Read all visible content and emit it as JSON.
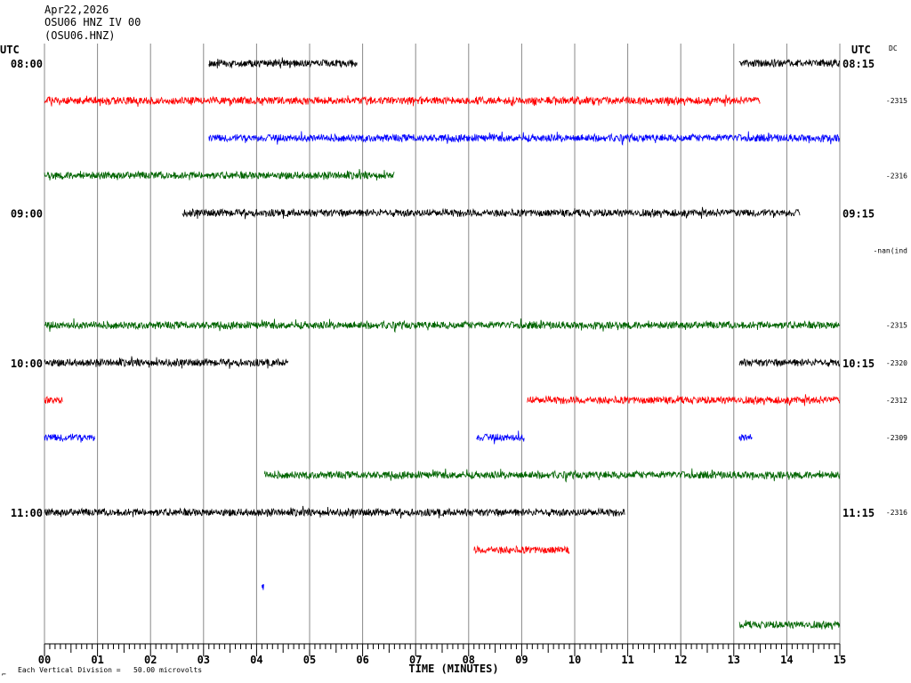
{
  "header": {
    "date": "Apr22,2026",
    "station_line": "OSU06 HNZ IV 00",
    "channel_line": "(OSU06.HNZ)"
  },
  "utc_left_label": "UTC",
  "utc_right_label": "UTC",
  "dc_label": "DC",
  "footer": {
    "scale_text": "Each Vertical Division =   50.00 microvolts",
    "corner_mark": "⌐"
  },
  "colors": {
    "black": "#000000",
    "red": "#ff0000",
    "blue": "#0000ff",
    "green": "#006400",
    "grid": "#888888"
  },
  "chart_data": {
    "type": "line",
    "title": "",
    "xlabel": "TIME (MINUTES)",
    "ylabel": "",
    "xlim": [
      0,
      15
    ],
    "x_tick_labels": [
      "00",
      "01",
      "02",
      "03",
      "04",
      "05",
      "06",
      "07",
      "08",
      "09",
      "10",
      "11",
      "12",
      "13",
      "14",
      "15"
    ],
    "row_count": 16,
    "row_minutes": 15,
    "time_labels_left": [
      {
        "row": 0,
        "text": "08:00"
      },
      {
        "row": 4,
        "text": "09:00"
      },
      {
        "row": 8,
        "text": "10:00"
      },
      {
        "row": 12,
        "text": "11:00"
      }
    ],
    "time_labels_right": [
      {
        "row": 0,
        "text": "08:15"
      },
      {
        "row": 4,
        "text": "09:15"
      },
      {
        "row": 8,
        "text": "10:15"
      },
      {
        "row": 12,
        "text": "11:15"
      }
    ],
    "dc_values": [
      {
        "row": 1,
        "text": "-2315"
      },
      {
        "row": 3,
        "text": "-2316"
      },
      {
        "row": 5,
        "text": "-nan(ind"
      },
      {
        "row": 7,
        "text": "-2315"
      },
      {
        "row": 8,
        "text": "-2320"
      },
      {
        "row": 9,
        "text": "-2312"
      },
      {
        "row": 10,
        "text": "-2309"
      },
      {
        "row": 12,
        "text": "-2316"
      }
    ],
    "traces": [
      {
        "row": 0,
        "color": "black",
        "segments": [
          [
            3.1,
            5.9
          ],
          [
            13.1,
            15.0
          ]
        ]
      },
      {
        "row": 1,
        "color": "red",
        "segments": [
          [
            0.0,
            13.5
          ]
        ]
      },
      {
        "row": 2,
        "color": "blue",
        "segments": [
          [
            3.1,
            15.0
          ]
        ]
      },
      {
        "row": 3,
        "color": "green",
        "segments": [
          [
            0.0,
            6.6
          ]
        ]
      },
      {
        "row": 4,
        "color": "black",
        "segments": [
          [
            2.6,
            14.25
          ]
        ]
      },
      {
        "row": 7,
        "color": "green",
        "segments": [
          [
            0.0,
            15.0
          ]
        ]
      },
      {
        "row": 8,
        "color": "black",
        "segments": [
          [
            0.0,
            4.6
          ],
          [
            13.1,
            15.0
          ]
        ]
      },
      {
        "row": 9,
        "color": "red",
        "segments": [
          [
            0.0,
            0.35
          ],
          [
            9.1,
            15.0
          ]
        ]
      },
      {
        "row": 10,
        "color": "blue",
        "segments": [
          [
            0.0,
            0.95
          ],
          [
            8.15,
            9.05
          ],
          [
            13.1,
            13.35
          ]
        ]
      },
      {
        "row": 11,
        "color": "green",
        "segments": [
          [
            4.15,
            15.0
          ]
        ]
      },
      {
        "row": 12,
        "color": "black",
        "segments": [
          [
            0.0,
            10.95
          ]
        ]
      },
      {
        "row": 13,
        "color": "red",
        "segments": [
          [
            8.1,
            9.9
          ]
        ]
      },
      {
        "row": 14,
        "color": "blue",
        "segments": [
          [
            4.1,
            4.15
          ]
        ]
      },
      {
        "row": 15,
        "color": "green",
        "segments": [
          [
            13.1,
            15.0
          ]
        ]
      }
    ]
  }
}
